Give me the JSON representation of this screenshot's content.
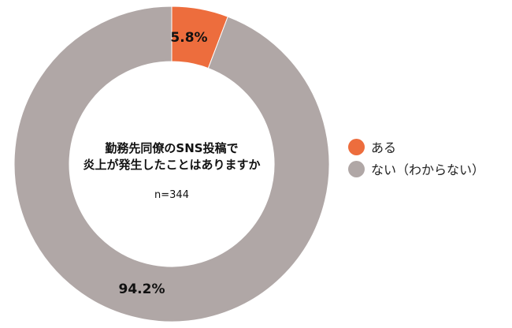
{
  "chart_data": {
    "type": "pie",
    "donut": true,
    "title": "勤務先同僚のSNS投稿で\n炎上が発生したことはありますか",
    "title_lines": [
      "勤務先同僚のSNS投稿で",
      "炎上が発生したことはありますか"
    ],
    "sample_size": "n=344",
    "categories": [
      "ある",
      "ない（わからない）"
    ],
    "values": [
      5.8,
      94.2
    ],
    "labels": [
      "5.8%",
      "94.2%"
    ],
    "colors": [
      "#ED6D3D",
      "#B0A7A6"
    ],
    "legend_placement": "right"
  }
}
